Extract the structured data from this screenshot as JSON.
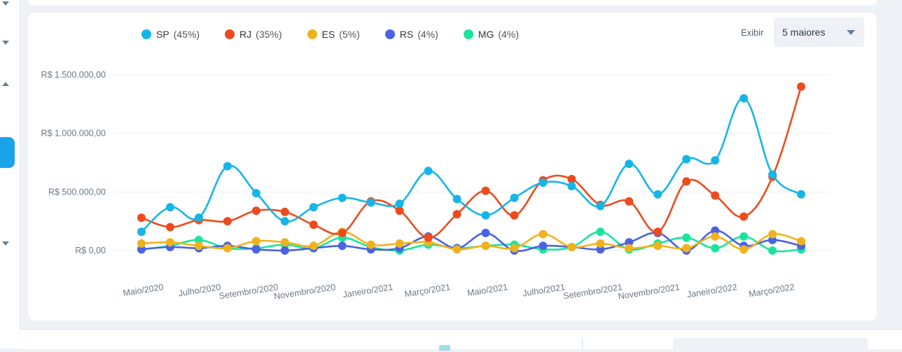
{
  "toolbar": {
    "exibir_label": "Exibir",
    "select_value": "5 maiores"
  },
  "legend": [
    {
      "name": "SP",
      "pct": "(45%)",
      "color": "#16b5e8"
    },
    {
      "name": "RJ",
      "pct": "(35%)",
      "color": "#ed4b1e"
    },
    {
      "name": "ES",
      "pct": "(5%)",
      "color": "#f0b21c"
    },
    {
      "name": "RS",
      "pct": "(4%)",
      "color": "#4a63e3"
    },
    {
      "name": "MG",
      "pct": "(4%)",
      "color": "#19e59a"
    }
  ],
  "chart_data": {
    "type": "line",
    "title": "",
    "xlabel": "",
    "ylabel": "",
    "ylim": [
      0,
      1500000
    ],
    "y_ticks": [
      {
        "value": 0,
        "label": "R$ 0,00"
      },
      {
        "value": 500000,
        "label": "R$ 500.000,00"
      },
      {
        "value": 1000000,
        "label": "R$ 1.000.000,00"
      },
      {
        "value": 1500000,
        "label": "R$ 1.500.000,00"
      }
    ],
    "x_tick_labels": [
      "Maio/2020",
      "Julho/2020",
      "Setembro/2020",
      "Novembro/2020",
      "Janeiro/2021",
      "Março/2021",
      "Maio/2021",
      "Julho/2021",
      "Setembro/2021",
      "Novembro/2021",
      "Janeiro/2022",
      "Março/2022"
    ],
    "x_tick_label_every": 2,
    "grid": true,
    "legend_position": "top",
    "series": [
      {
        "name": "SP",
        "color": "#16b5e8",
        "values": [
          160000,
          370000,
          280000,
          720000,
          490000,
          250000,
          370000,
          450000,
          410000,
          400000,
          680000,
          440000,
          300000,
          450000,
          580000,
          550000,
          380000,
          740000,
          480000,
          780000,
          770000,
          1300000,
          650000,
          480000
        ]
      },
      {
        "name": "RJ",
        "color": "#ed4b1e",
        "values": [
          280000,
          200000,
          260000,
          250000,
          340000,
          330000,
          220000,
          150000,
          420000,
          340000,
          110000,
          310000,
          510000,
          300000,
          600000,
          610000,
          390000,
          420000,
          160000,
          590000,
          470000,
          290000,
          630000,
          1400000
        ]
      },
      {
        "name": "ES",
        "color": "#f0b21c",
        "values": [
          60000,
          70000,
          40000,
          20000,
          80000,
          70000,
          40000,
          160000,
          50000,
          60000,
          70000,
          10000,
          40000,
          20000,
          140000,
          30000,
          60000,
          20000,
          40000,
          20000,
          120000,
          10000,
          140000,
          80000
        ]
      },
      {
        "name": "RS",
        "color": "#4a63e3",
        "values": [
          10000,
          30000,
          20000,
          40000,
          10000,
          0,
          20000,
          40000,
          10000,
          20000,
          120000,
          20000,
          150000,
          0,
          40000,
          30000,
          10000,
          70000,
          150000,
          0,
          170000,
          40000,
          90000,
          40000
        ]
      },
      {
        "name": "MG",
        "color": "#19e59a",
        "values": [
          10000,
          40000,
          90000,
          20000,
          20000,
          50000,
          20000,
          110000,
          30000,
          0,
          50000,
          20000,
          40000,
          50000,
          10000,
          30000,
          160000,
          10000,
          60000,
          110000,
          20000,
          120000,
          0,
          10000
        ]
      }
    ]
  }
}
